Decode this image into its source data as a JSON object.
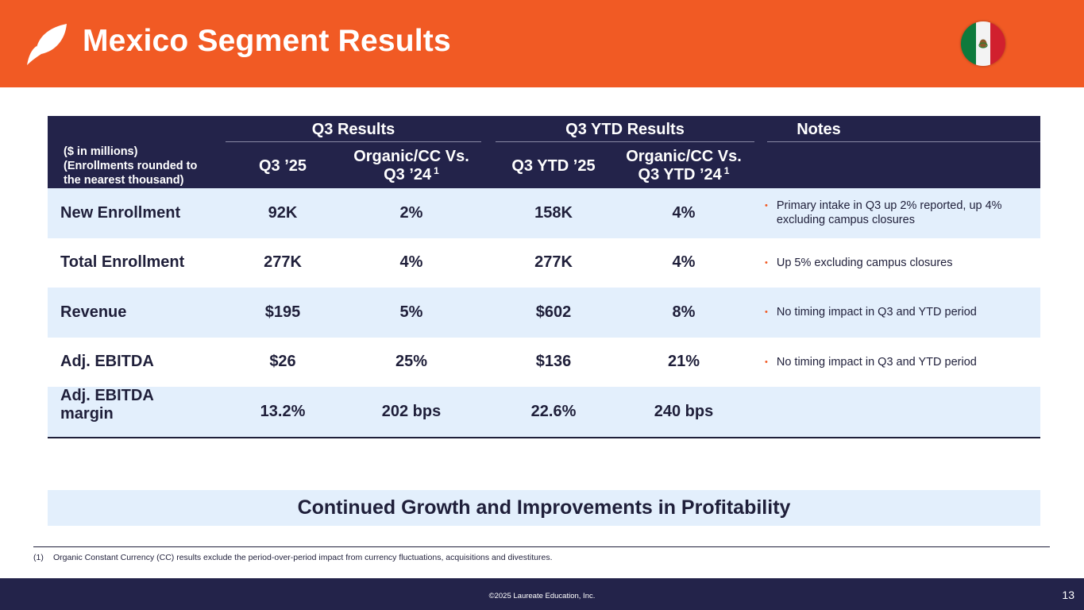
{
  "header": {
    "title": "Mexico Segment Results",
    "accent_color": "#f15a24"
  },
  "table": {
    "units_label": [
      "($ in millions)",
      "(Enrollments rounded to",
      "the nearest thousand)"
    ],
    "group_headers": {
      "q3": "Q3 Results",
      "ytd": "Q3 YTD Results",
      "notes": "Notes"
    },
    "sub_headers": {
      "q3": "Q3 ’25",
      "q3_vs_line1": "Organic/CC Vs.",
      "q3_vs_line2": "Q3 ’24",
      "ytd": "Q3 YTD ’25",
      "ytd_vs_line1": "Organic/CC Vs.",
      "ytd_vs_line2": "Q3 YTD ’24",
      "footnote_ref": "1"
    },
    "rows": [
      {
        "label": "New Enrollment",
        "q3": "92K",
        "q3_vs": "2%",
        "ytd": "158K",
        "ytd_vs": "4%",
        "note": "Primary intake in Q3 up 2% reported, up 4% excluding campus closures"
      },
      {
        "label": "Total Enrollment",
        "q3": "277K",
        "q3_vs": "4%",
        "ytd": "277K",
        "ytd_vs": "4%",
        "note": "Up 5% excluding campus closures"
      },
      {
        "label": "Revenue",
        "q3": "$195",
        "q3_vs": "5%",
        "ytd": "$602",
        "ytd_vs": "8%",
        "note": "No timing impact in Q3 and YTD period"
      },
      {
        "label": "Adj. EBITDA",
        "q3": "$26",
        "q3_vs": "25%",
        "ytd": "$136",
        "ytd_vs": "21%",
        "note": "No timing impact in Q3 and YTD period"
      },
      {
        "label_line1": "Adj. EBITDA",
        "label_line2": "margin",
        "q3": "13.2%",
        "q3_vs": "202 bps",
        "ytd": "22.6%",
        "ytd_vs": "240 bps"
      }
    ]
  },
  "banner": {
    "text": "Continued Growth and Improvements in Profitability"
  },
  "footnote": {
    "number": "(1)",
    "text": "Organic Constant Currency (CC) results exclude the period-over-period impact from currency fluctuations, acquisitions and divestitures."
  },
  "footer": {
    "copyright": "©2025 Laureate Education, Inc.",
    "page_number": "13"
  },
  "icons": {
    "logo": "laureate-leaf-logo",
    "flag": "mexico-flag-icon",
    "bullet": "•"
  }
}
